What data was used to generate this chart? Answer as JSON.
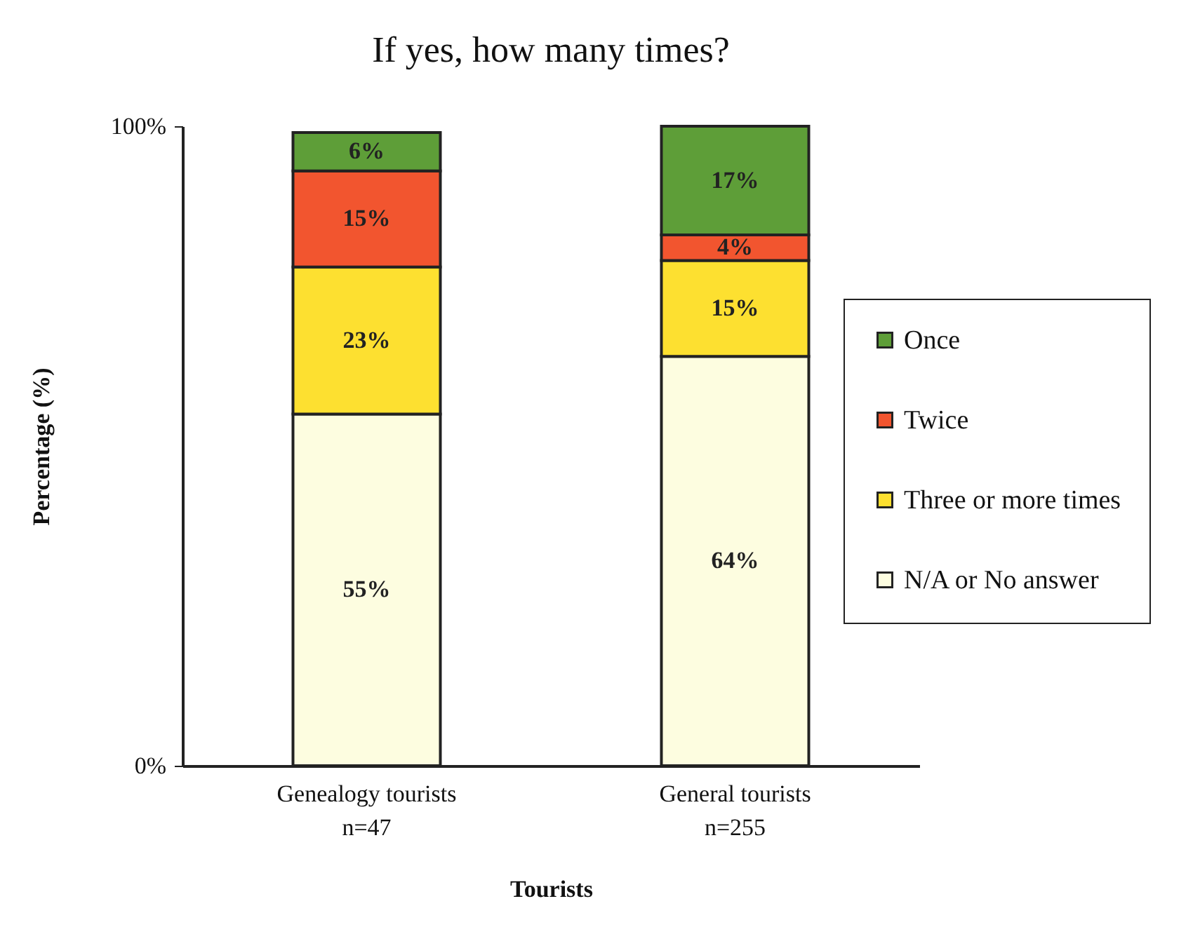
{
  "chart_data": {
    "type": "bar",
    "title": "If yes, how many times?",
    "xlabel": "Tourists",
    "ylabel": "Percentage (%)",
    "categories": [
      "Genealogy tourists\nn=47",
      "General tourists\nn=255"
    ],
    "stacked": true,
    "legend": "right",
    "ylim": [
      0,
      100
    ],
    "yticks": [
      {
        "value": 0,
        "label": "0%"
      },
      {
        "value": 100,
        "label": "100%"
      }
    ],
    "series": [
      {
        "name": "N/A or No answer",
        "color": "#fdfde0",
        "values": [
          55,
          64
        ],
        "value_labels": [
          "55%",
          "64%"
        ]
      },
      {
        "name": "Three or more times",
        "color": "#fde030",
        "values": [
          23,
          15
        ],
        "value_labels": [
          "23%",
          "15%"
        ]
      },
      {
        "name": "Twice",
        "color": "#f2552f",
        "values": [
          15,
          4
        ],
        "value_labels": [
          "15%",
          "4%"
        ]
      },
      {
        "name": "Once",
        "color": "#5e9e38",
        "values": [
          6,
          17
        ],
        "value_labels": [
          "6%",
          "17%"
        ]
      }
    ]
  }
}
